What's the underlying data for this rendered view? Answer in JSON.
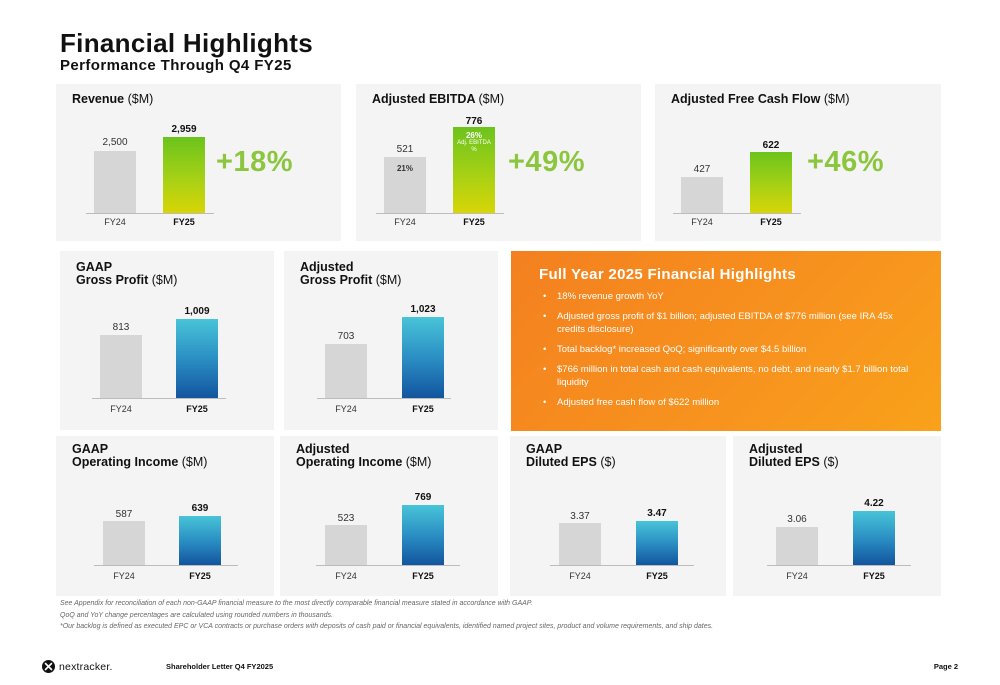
{
  "header": {
    "title": "Financial Highlights",
    "subtitle": "Performance Through Q4 FY25"
  },
  "colors": {
    "accent_green": "#8cc63f",
    "orange": "#f7931e",
    "bar_gray": "#d6d6d6",
    "bar_blue": "#2b8fc4"
  },
  "cards": {
    "revenue": {
      "title": "Revenue",
      "unit": "($M)",
      "fy24_value": "2,500",
      "fy25_value": "2,959",
      "fy24_label": "FY24",
      "fy25_label": "FY25",
      "growth": "+18%"
    },
    "ebitda": {
      "title": "Adjusted EBITDA",
      "unit": "($M)",
      "fy24_value": "521",
      "fy25_value": "776",
      "fy24_margin": "21%",
      "fy25_margin": "26%",
      "margin_note": "Adj. EBITDA %",
      "fy24_label": "FY24",
      "fy25_label": "FY25",
      "growth": "+49%"
    },
    "fcf": {
      "title": "Adjusted Free Cash Flow",
      "unit": "($M)",
      "fy24_value": "427",
      "fy25_value": "622",
      "fy24_label": "FY24",
      "fy25_label": "FY25",
      "growth": "+46%"
    },
    "gaap_gp": {
      "title_line1": "GAAP",
      "title_line2": "Gross Profit",
      "unit": "($M)",
      "fy24_value": "813",
      "fy25_value": "1,009",
      "fy24_label": "FY24",
      "fy25_label": "FY25"
    },
    "adj_gp": {
      "title_line1": "Adjusted",
      "title_line2": "Gross Profit",
      "unit": "($M)",
      "fy24_value": "703",
      "fy25_value": "1,023",
      "fy24_label": "FY24",
      "fy25_label": "FY25"
    },
    "gaap_oi": {
      "title_line1": "GAAP",
      "title_line2": "Operating Income",
      "unit": "($M)",
      "fy24_value": "587",
      "fy25_value": "639",
      "fy24_label": "FY24",
      "fy25_label": "FY25"
    },
    "adj_oi": {
      "title_line1": "Adjusted",
      "title_line2": "Operating Income",
      "unit": "($M)",
      "fy24_value": "523",
      "fy25_value": "769",
      "fy24_label": "FY24",
      "fy25_label": "FY25"
    },
    "gaap_eps": {
      "title_line1": "GAAP",
      "title_line2": "Diluted EPS",
      "unit": "($)",
      "fy24_value": "3.37",
      "fy25_value": "3.47",
      "fy24_label": "FY24",
      "fy25_label": "FY25"
    },
    "adj_eps": {
      "title_line1": "Adjusted",
      "title_line2": "Diluted EPS",
      "unit": "($)",
      "fy24_value": "3.06",
      "fy25_value": "4.22",
      "fy24_label": "FY24",
      "fy25_label": "FY25"
    }
  },
  "highlights": {
    "title": "Full Year 2025 Financial Highlights",
    "items": [
      "18% revenue growth YoY",
      "Adjusted gross profit of $1 billion; adjusted EBITDA of $776 million (see IRA 45x credits disclosure)",
      "Total backlog* increased QoQ; significantly over $4.5 billion",
      "$766 million in total cash and cash equivalents, no debt, and nearly $1.7 billion total liquidity",
      "Adjusted free cash flow of $622 million"
    ]
  },
  "footnotes": {
    "line1": "See Appendix for reconciliation of each non-GAAP financial measure to the most directly comparable financial measure stated in accordance with GAAP.",
    "line2": "QoQ and YoY change percentages are calculated using rounded numbers in thousands.",
    "line3": "*Our backlog is defined as executed EPC or VCA contracts or purchase orders with deposits of cash paid or financial equivalents, identified named project sites, product and volume requirements, and ship dates."
  },
  "footer": {
    "brand": "nextracker.",
    "letter": "Shareholder Letter Q4 FY2025",
    "page": "Page 2"
  }
}
